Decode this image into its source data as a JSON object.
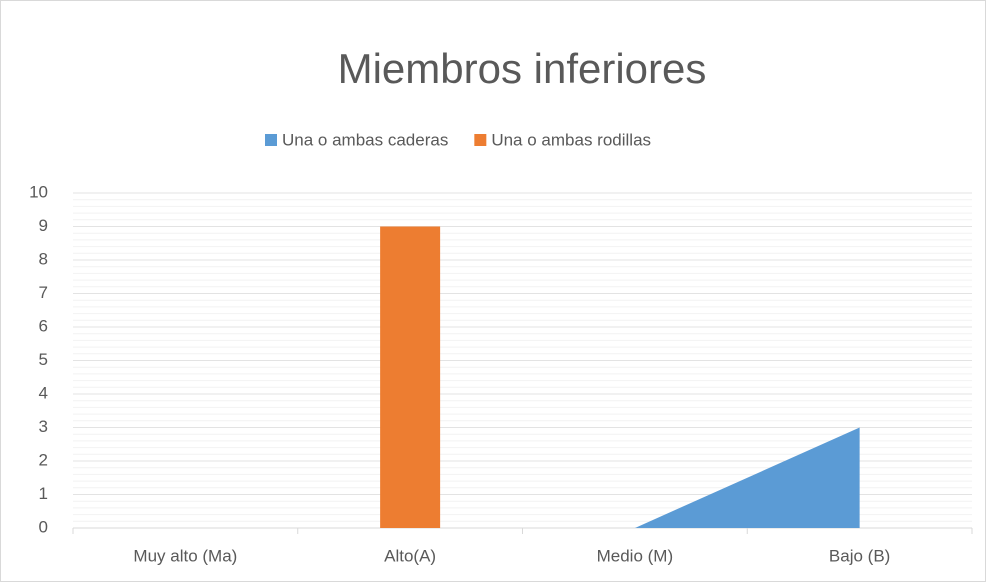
{
  "chart_data": {
    "type": "combo",
    "title": "Miembros inferiores",
    "categories": [
      "Muy alto (Ma)",
      "Alto(A)",
      "Medio (M)",
      "Bajo (B)"
    ],
    "series": [
      {
        "name": "Una o ambas caderas",
        "type": "area",
        "color": "#5b9bd5",
        "values": [
          0,
          0,
          0,
          3
        ]
      },
      {
        "name": "Una o ambas rodillas",
        "type": "bar",
        "color": "#ed7d31",
        "values": [
          0,
          9,
          0,
          0
        ]
      }
    ],
    "ylim": [
      0,
      10
    ],
    "yticks": [
      0,
      1,
      2,
      3,
      4,
      5,
      6,
      7,
      8,
      9,
      10
    ],
    "grid": true,
    "legend": "top"
  }
}
